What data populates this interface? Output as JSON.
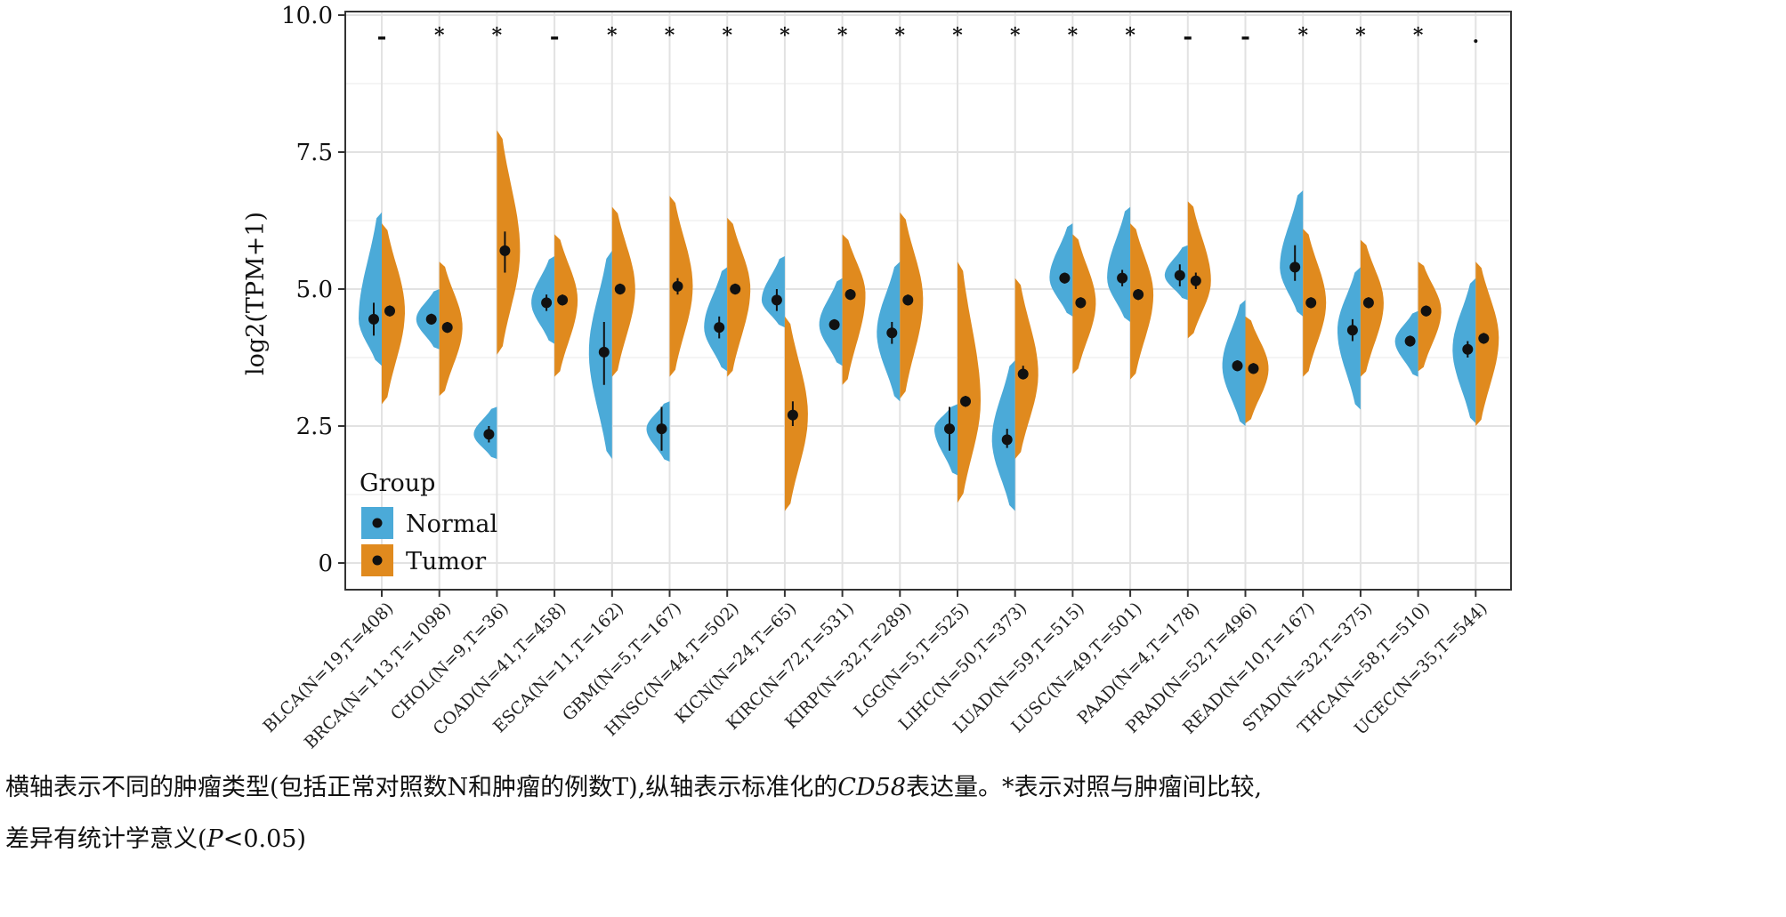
{
  "chart_data": {
    "type": "violin",
    "ylabel": "log2(TPM+1)",
    "ylim": [
      -0.4,
      10.0
    ],
    "yticks": [
      0,
      2.5,
      5.0,
      7.5,
      10.0
    ],
    "ytick_labels": [
      "0",
      "2.5",
      "5.0",
      "7.5",
      "10.0"
    ],
    "grid": true,
    "legend_position": "bottom-left",
    "legend": {
      "title": "Group",
      "entries": [
        {
          "label": "Normal",
          "color": "#4BAAD8"
        },
        {
          "label": "Tumor",
          "color": "#E08A1E"
        }
      ]
    },
    "categories": [
      "BLCA(N=19,T=408)",
      "BRCA(N=113,T=1098)",
      "CHOL(N=9,T=36)",
      "COAD(N=41,T=458)",
      "ESCA(N=11,T=162)",
      "GBM(N=5,T=167)",
      "HNSC(N=44,T=502)",
      "KICN(N=24,T=65)",
      "KIRC(N=72,T=531)",
      "KIRP(N=32,T=289)",
      "LGG(N=5,T=525)",
      "LIHC(N=50,T=373)",
      "LUAD(N=59,T=515)",
      "LUSC(N=49,T=501)",
      "PAAD(N=4,T=178)",
      "PRAD(N=52,T=496)",
      "READ(N=10,T=167)",
      "STAD(N=32,T=375)",
      "THCA(N=58,T=510)",
      "UCEC(N=35,T=544)"
    ],
    "significance": [
      "-",
      "*",
      "*",
      "-",
      "*",
      "*",
      "*",
      "*",
      "*",
      "*",
      "*",
      "*",
      "*",
      "*",
      "-",
      "-",
      "*",
      "*",
      "*",
      "."
    ],
    "series": [
      {
        "name": "Normal",
        "color": "#4BAAD8",
        "median": [
          4.45,
          4.45,
          2.35,
          4.75,
          3.85,
          2.45,
          4.3,
          4.8,
          4.35,
          4.2,
          2.45,
          2.25,
          5.2,
          5.2,
          5.25,
          3.6,
          5.4,
          4.25,
          4.05,
          3.9
        ],
        "error_low": [
          4.15,
          4.35,
          2.2,
          4.6,
          3.25,
          2.05,
          4.1,
          4.6,
          4.25,
          4.0,
          2.05,
          2.1,
          5.1,
          5.05,
          5.05,
          3.5,
          5.15,
          4.05,
          3.95,
          3.75
        ],
        "error_high": [
          4.75,
          4.55,
          2.5,
          4.9,
          4.4,
          2.85,
          4.5,
          5.0,
          4.45,
          4.4,
          2.85,
          2.45,
          5.3,
          5.35,
          5.45,
          3.7,
          5.8,
          4.45,
          4.15,
          4.05
        ],
        "density_min": [
          3.6,
          3.9,
          1.9,
          4.0,
          1.9,
          1.85,
          3.5,
          4.3,
          3.6,
          2.95,
          1.6,
          0.95,
          4.5,
          4.4,
          4.8,
          2.5,
          4.5,
          2.8,
          3.4,
          2.55
        ],
        "density_max": [
          6.4,
          5.0,
          2.85,
          5.6,
          5.7,
          2.95,
          5.4,
          5.6,
          5.2,
          5.5,
          2.9,
          3.7,
          6.2,
          6.5,
          5.8,
          4.8,
          6.8,
          5.4,
          4.6,
          5.2
        ]
      },
      {
        "name": "Tumor",
        "color": "#E08A1E",
        "median": [
          4.6,
          4.3,
          5.7,
          4.8,
          5.0,
          5.05,
          5.0,
          2.7,
          4.9,
          4.8,
          2.95,
          3.45,
          4.75,
          4.9,
          5.15,
          3.55,
          4.75,
          4.75,
          4.6,
          4.1
        ],
        "error_low": [
          4.5,
          4.2,
          5.3,
          4.7,
          4.9,
          4.9,
          4.9,
          2.5,
          4.8,
          4.7,
          2.85,
          3.35,
          4.65,
          4.8,
          5.0,
          3.45,
          4.65,
          4.65,
          4.5,
          4.0
        ],
        "error_high": [
          4.7,
          4.4,
          6.05,
          4.9,
          5.1,
          5.2,
          5.1,
          2.95,
          5.0,
          4.9,
          3.05,
          3.6,
          4.85,
          5.0,
          5.3,
          3.65,
          4.85,
          4.85,
          4.7,
          4.2
        ],
        "density_min": [
          2.9,
          3.05,
          3.8,
          3.4,
          3.4,
          3.4,
          3.4,
          0.95,
          3.25,
          3.0,
          1.1,
          1.9,
          3.45,
          3.35,
          4.1,
          2.55,
          3.4,
          3.4,
          3.5,
          2.5
        ],
        "density_max": [
          6.2,
          5.5,
          7.9,
          6.0,
          6.5,
          6.7,
          6.3,
          4.5,
          6.0,
          6.4,
          5.5,
          5.2,
          6.0,
          6.2,
          6.6,
          4.5,
          6.1,
          5.9,
          5.5,
          5.5
        ]
      }
    ]
  },
  "caption": {
    "line1_a": "横轴表示不同的肿瘤类型(包括正常对照数N和肿瘤的例数T),纵轴表示标准化的",
    "line1_gene": "CD58",
    "line1_b": "表达量。*表示对照与肿瘤间比较,",
    "line2_a": "差异有统计学意义(",
    "line2_p": "P",
    "line2_b": "<0.05)"
  }
}
